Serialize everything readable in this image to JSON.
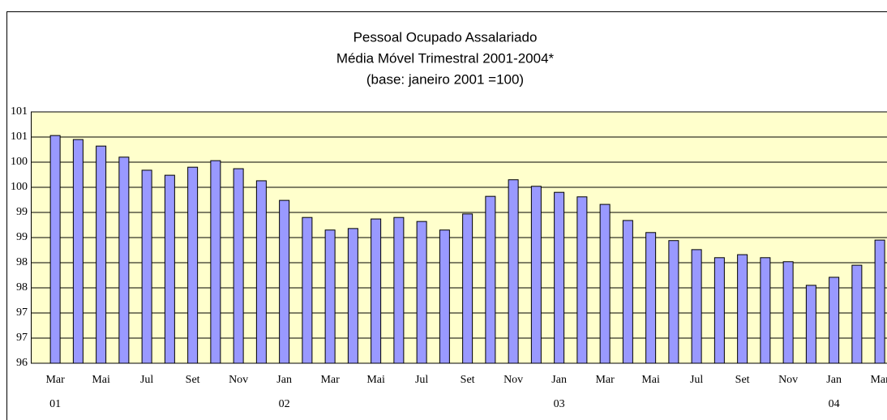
{
  "chart_data": {
    "type": "bar",
    "title": "Pessoal Ocupado Assalariado",
    "subtitle": "Média Móvel Trimestral 2001-2004*",
    "note": "(base: janeiro 2001 =100)",
    "categories": [
      "Mar",
      null,
      "Mai",
      null,
      "Jul",
      null,
      "Set",
      null,
      "Nov",
      null,
      "Jan",
      null,
      "Mar",
      null,
      "Mai",
      null,
      "Jul",
      null,
      "Set",
      null,
      "Nov",
      null,
      "Jan",
      null,
      "Mar",
      null,
      "Mai",
      null,
      "Jul",
      null,
      "Set",
      null,
      "Nov",
      null,
      "Jan",
      null,
      "Mar"
    ],
    "category_years": [
      "01",
      null,
      null,
      null,
      null,
      null,
      null,
      null,
      null,
      null,
      "02",
      null,
      null,
      null,
      null,
      null,
      null,
      null,
      null,
      null,
      null,
      null,
      "03",
      null,
      null,
      null,
      null,
      null,
      null,
      null,
      null,
      null,
      null,
      null,
      "04",
      null,
      null
    ],
    "values": [
      100.53,
      100.45,
      100.32,
      100.1,
      99.84,
      99.74,
      99.9,
      100.03,
      99.87,
      99.63,
      99.24,
      98.9,
      98.65,
      98.68,
      98.87,
      98.9,
      98.82,
      98.65,
      98.97,
      99.32,
      99.65,
      99.52,
      99.4,
      99.31,
      99.16,
      98.84,
      98.6,
      98.44,
      98.26,
      98.1,
      98.16,
      98.1,
      98.02,
      97.55,
      97.71,
      97.95,
      98.45
    ],
    "color": "#9999ff",
    "ylim": [
      96,
      101
    ],
    "yticks": [
      96,
      {
        "value": 96.5,
        "label": "97"
      },
      97,
      {
        "value": 97.5,
        "label": "98"
      },
      98,
      {
        "value": 98.5,
        "label": "99"
      },
      99,
      {
        "value": 99.5,
        "label": "100"
      },
      100,
      {
        "value": 100.5,
        "label": "101"
      },
      101
    ],
    "grid": true
  }
}
